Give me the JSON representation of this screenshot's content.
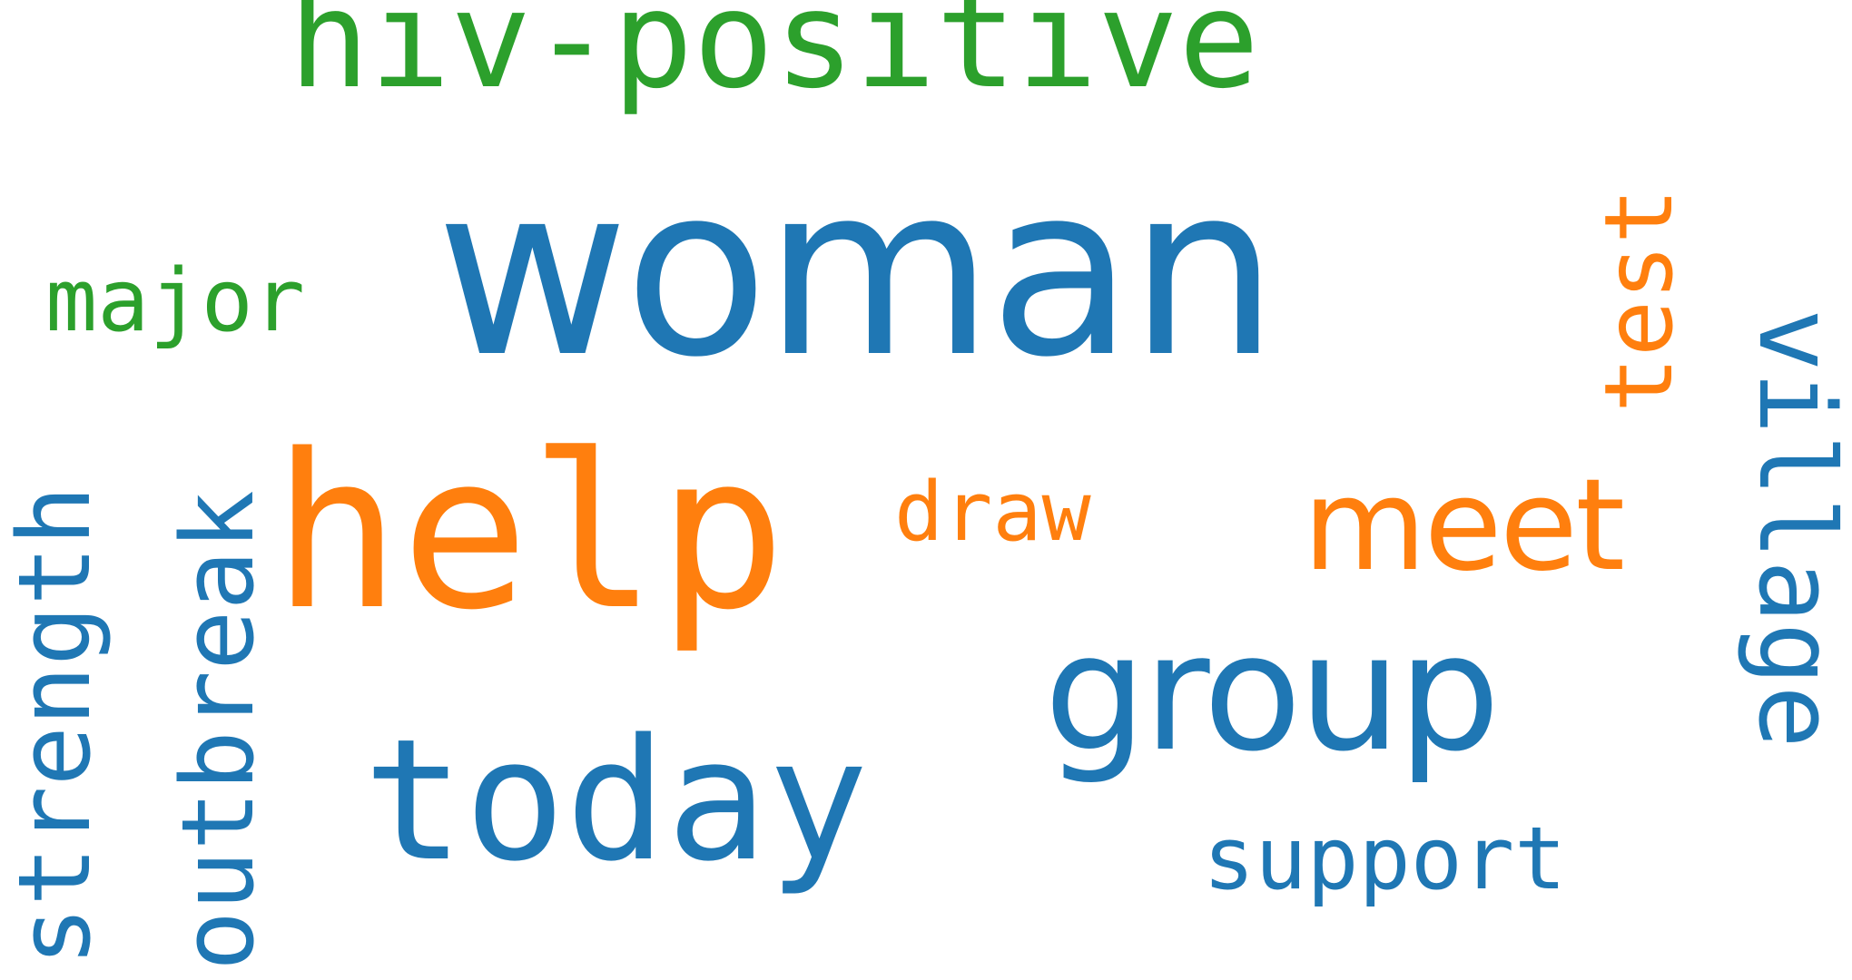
{
  "words": {
    "woman": "woman",
    "help": "help",
    "hiv_positive": "hiv-positive",
    "group": "group",
    "today": "today",
    "meet": "meet",
    "major": "major",
    "draw": "draw",
    "support": "support",
    "strength": "strength",
    "outbreak": "outbreak",
    "test": "test",
    "village": "village"
  },
  "colors": {
    "blue": "#1f77b4",
    "orange": "#ff7f0e",
    "green": "#2ca02c",
    "background": "#ffffff"
  }
}
